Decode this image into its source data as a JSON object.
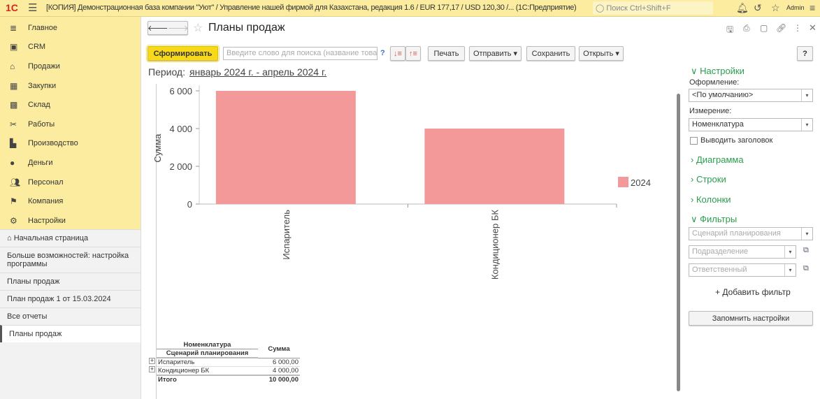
{
  "topbar": {
    "logo": "1С",
    "title": "[КОПИЯ] Демонстрационная база компании \"Уют\" / Управление нашей фирмой для Казахстана, редакция 1.6 / EUR 177,17 / USD 120,30 /...  (1С:Предприятие)",
    "search_placeholder": "Поиск Ctrl+Shift+F",
    "user": "Admin"
  },
  "sidebar": {
    "items": [
      {
        "label": "Главное",
        "icon": "menu-icon"
      },
      {
        "label": "CRM",
        "icon": "crm-icon"
      },
      {
        "label": "Продажи",
        "icon": "basket-icon"
      },
      {
        "label": "Закупки",
        "icon": "cart-icon"
      },
      {
        "label": "Склад",
        "icon": "warehouse-icon"
      },
      {
        "label": "Работы",
        "icon": "tools-icon"
      },
      {
        "label": "Производство",
        "icon": "factory-icon"
      },
      {
        "label": "Деньги",
        "icon": "money-icon"
      },
      {
        "label": "Персонал",
        "icon": "people-icon"
      },
      {
        "label": "Компания",
        "icon": "flag-icon"
      },
      {
        "label": "Настройки",
        "icon": "gear-icon"
      }
    ],
    "links": [
      "Начальная страница",
      "Больше возможностей: настройка программы",
      "Планы продаж",
      "План продаж 1 от 15.03.2024",
      "Все отчеты",
      "Планы продаж"
    ]
  },
  "main": {
    "title": "Планы продаж",
    "generate": "Сформировать",
    "search_placeholder": "Введите слово для поиска (название това...",
    "help": "?",
    "print": "Печать",
    "send": "Отправить",
    "save": "Сохранить",
    "open": "Открыть",
    "period_label": "Период:",
    "period_value": "январь 2024 г. - апрель 2024 г."
  },
  "chart_data": {
    "type": "bar",
    "categories": [
      "Испаритель",
      "Кондиционер БК"
    ],
    "series": [
      {
        "name": "2024",
        "values": [
          6000,
          4000
        ],
        "color": "#f4999a"
      }
    ],
    "ylabel": "Сумма",
    "ylim": [
      0,
      6000
    ],
    "yticks": [
      "0",
      "2 000",
      "4 000",
      "6 000"
    ],
    "legend": "right"
  },
  "report": {
    "h1": "Номенклатура",
    "h2": "Сценарий планирования",
    "h3": "Сумма",
    "rows": [
      {
        "name": "Испаритель",
        "sum": "6 000,00"
      },
      {
        "name": "Кондиционер БК",
        "sum": "4 000,00"
      }
    ],
    "total_label": "Итого",
    "total": "10 000,00"
  },
  "settings": {
    "title": "Настройки",
    "design_label": "Оформление:",
    "design_value": "<По умолчанию>",
    "dim_label": "Измерение:",
    "dim_value": "Номенклатура",
    "show_header": "Выводить заголовок",
    "diagram": "Диаграмма",
    "rows": "Строки",
    "columns": "Колонки",
    "filters": "Фильтры",
    "f1": "Сценарий планирования",
    "f2": "Подразделение",
    "f3": "Ответственный",
    "add_filter": "+ Добавить фильтр",
    "remember": "Запомнить настройки"
  }
}
